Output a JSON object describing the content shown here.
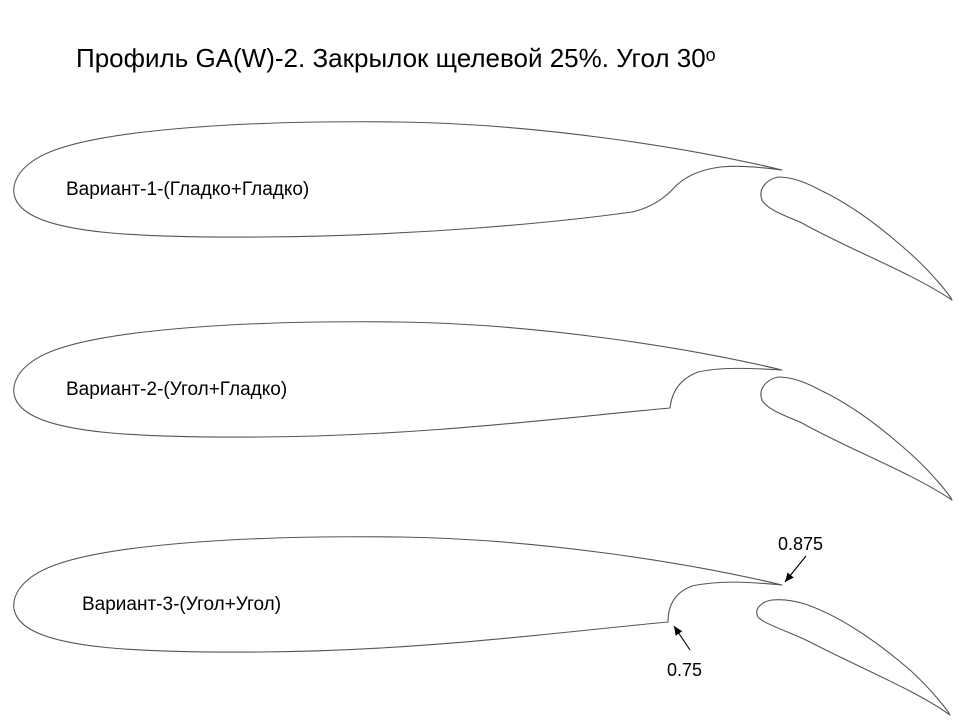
{
  "title": {
    "main": "Профиль GA(W)-2.  Закрылок щелевой 25%.  Угол 30",
    "superscript": "о"
  },
  "variants": [
    {
      "label": "Вариант-1-(Гладко+Гладко)"
    },
    {
      "label": "Вариант-2-(Угол+Гладко)"
    },
    {
      "label": "Вариант-3-(Угол+Угол)"
    }
  ],
  "annotations": {
    "upper": "0.875",
    "lower": "0.75"
  }
}
